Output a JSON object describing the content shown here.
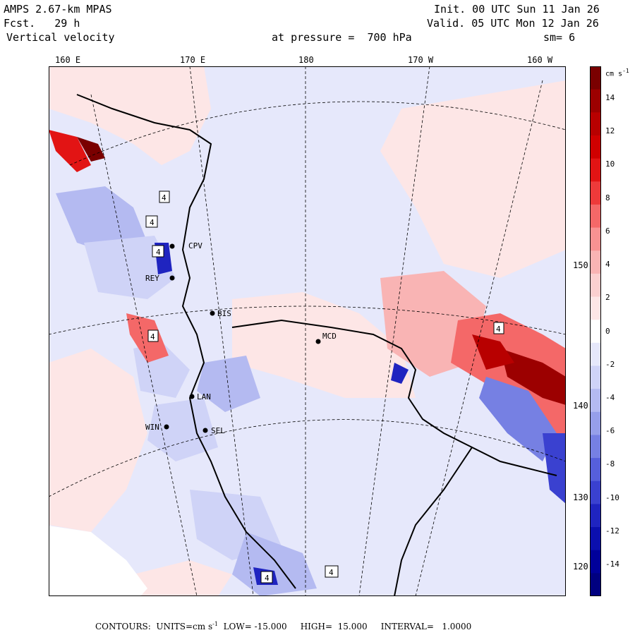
{
  "header": {
    "model": "AMPS 2.67-km MPAS",
    "forecast": "Fcst.   29 h",
    "field": "Vertical velocity",
    "init": "Init. 00 UTC Sun 11 Jan 26",
    "valid": "Valid. 05 UTC Mon 12 Jan 26",
    "level": "at pressure =  700 hPa",
    "smoothing": "sm= 6"
  },
  "longitude_labels": [
    "160 E",
    "170 E",
    "180",
    "170 W",
    "160 W"
  ],
  "latitude_labels": [
    "150 W",
    "140 W",
    "130 W",
    "120 W"
  ],
  "colorbar": {
    "units": "cm s",
    "units_exp": "-1",
    "ticks": [
      "14",
      "12",
      "10",
      "8",
      "6",
      "4",
      "2",
      "0",
      "-2",
      "-4",
      "-6",
      "-8",
      "-10",
      "-12",
      "-14"
    ],
    "colors": [
      "#7a0000",
      "#9c0000",
      "#b80000",
      "#d00000",
      "#e21414",
      "#ee3a3a",
      "#f46868",
      "#f79292",
      "#f9b4b4",
      "#fbd0d0",
      "#fde6e6",
      "#ffffff",
      "#e6e8fb",
      "#cfd3f7",
      "#b4baf1",
      "#969fea",
      "#7680e3",
      "#565fdb",
      "#3a41d0",
      "#1f24c0",
      "#0b0fae",
      "#00009a",
      "#000080"
    ]
  },
  "stations": [
    "CPV",
    "BIS",
    "REY",
    "LAN",
    "SEL",
    "WIN",
    "MCD"
  ],
  "extrema_markers": [
    "4",
    "4",
    "4",
    "4",
    "4",
    "4",
    "4"
  ],
  "footer": {
    "label": "CONTOURS:",
    "units_label": "UNITS=cm s",
    "units_exp": "-1",
    "low": "LOW= -15.000",
    "high": "HIGH=  15.000",
    "interval": "INTERVAL=   1.0000"
  }
}
